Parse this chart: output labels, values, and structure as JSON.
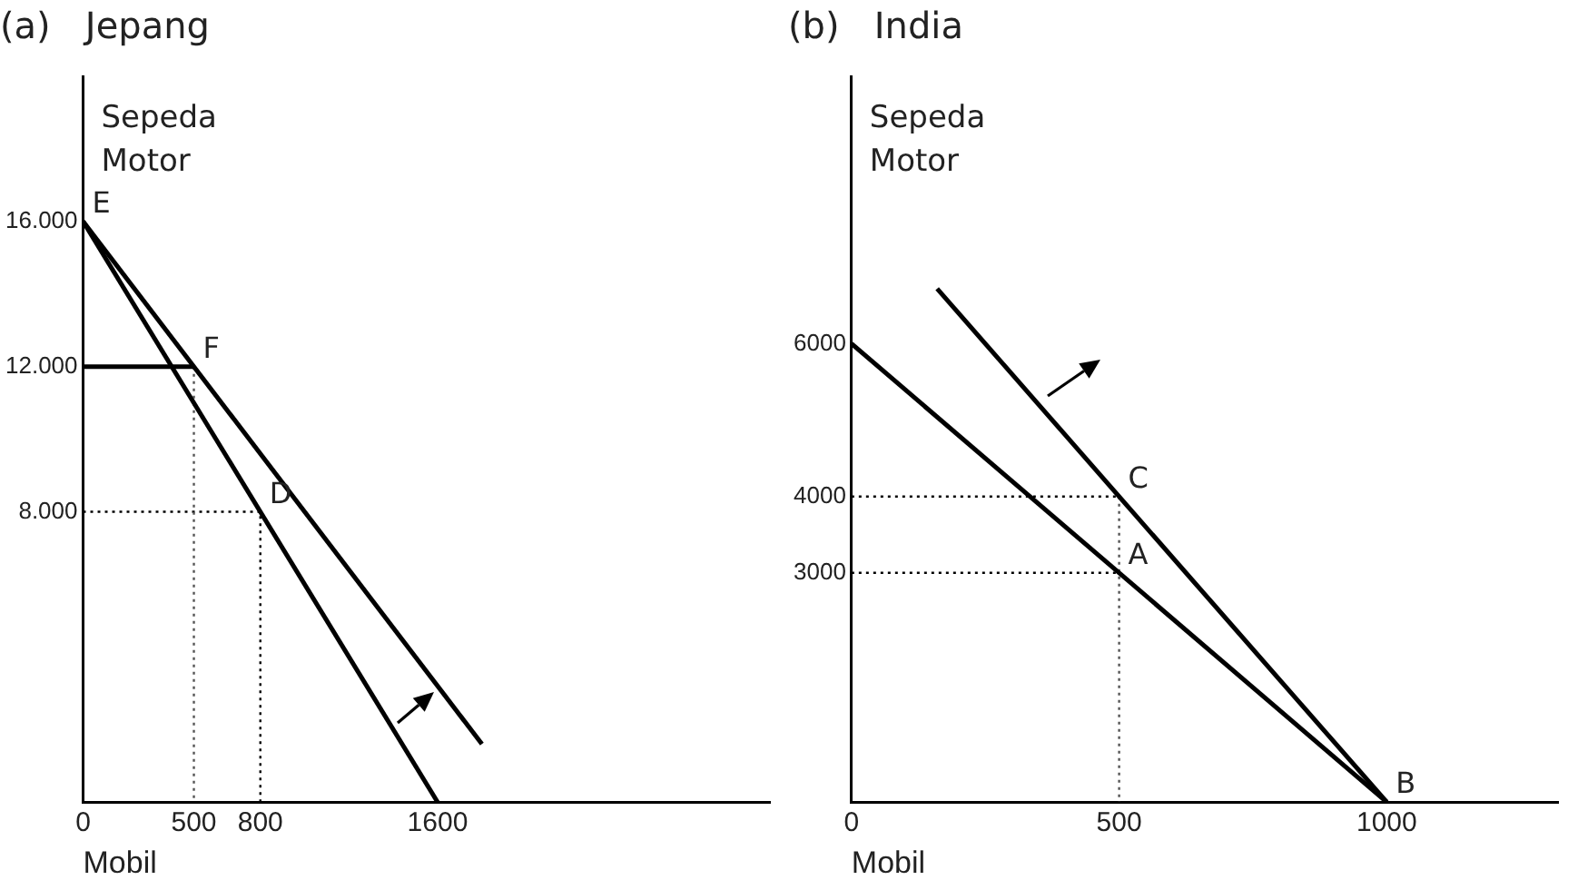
{
  "chart_data": [
    {
      "type": "line",
      "title": "(a)   Jepang",
      "xlabel": "Mobil",
      "ylabel": "Sepeda Motor",
      "xlim": [
        0,
        3100
      ],
      "ylim": [
        0,
        20000
      ],
      "xticks": [
        0,
        500,
        800,
        1600
      ],
      "yticks": [
        {
          "value": 8000,
          "label": "8.000"
        },
        {
          "value": 12000,
          "label": "12.000"
        },
        {
          "value": 16000,
          "label": "16.000"
        }
      ],
      "grid": false,
      "legend": false,
      "marker": "none",
      "series": [
        {
          "color": "#000000",
          "x": [
            0,
            1600
          ],
          "values": [
            16000,
            0
          ],
          "line_style": "solid"
        },
        {
          "color": "#000000",
          "x": [
            0,
            1800
          ],
          "values": [
            16000,
            1600
          ],
          "line_style": "solid"
        },
        {
          "color": "#000000",
          "x": [
            0,
            500
          ],
          "values": [
            12000,
            12000
          ],
          "line_style": "solid"
        },
        {
          "color": "#555555",
          "x": [
            500,
            500
          ],
          "values": [
            12000,
            0
          ],
          "line_style": "dotted"
        },
        {
          "color": "#000000",
          "x": [
            0,
            800,
            800
          ],
          "values": [
            8000,
            8000,
            0
          ],
          "line_style": "dotted"
        }
      ],
      "annotations": [
        {
          "text": "E",
          "x": 0,
          "y": 16000
        },
        {
          "text": "F",
          "x": 500,
          "y": 12000
        },
        {
          "text": "D",
          "x": 800,
          "y": 8000
        }
      ]
    },
    {
      "type": "line",
      "title": "(b)   India",
      "xlabel": "Mobil",
      "ylabel": "Sepeda Motor",
      "xlim": [
        0,
        1320
      ],
      "ylim": [
        0,
        9500
      ],
      "xticks": [
        0,
        500,
        1000
      ],
      "yticks": [
        3000,
        4000,
        6000
      ],
      "grid": false,
      "legend": false,
      "marker": "none",
      "series": [
        {
          "color": "#000000",
          "x": [
            0,
            1000
          ],
          "values": [
            6000,
            0
          ],
          "line_style": "solid"
        },
        {
          "color": "#000000",
          "x": [
            160,
            1000
          ],
          "values": [
            6720,
            0
          ],
          "line_style": "solid"
        },
        {
          "color": "#000000",
          "x": [
            0,
            500
          ],
          "values": [
            4000,
            4000
          ],
          "line_style": "dotted"
        },
        {
          "color": "#000000",
          "x": [
            0,
            500
          ],
          "values": [
            3000,
            3000
          ],
          "line_style": "dotted"
        },
        {
          "color": "#555555",
          "x": [
            500,
            500
          ],
          "values": [
            4000,
            0
          ],
          "line_style": "dotted"
        }
      ],
      "annotations": [
        {
          "text": "C",
          "x": 500,
          "y": 4000
        },
        {
          "text": "A",
          "x": 500,
          "y": 3000
        },
        {
          "text": "B",
          "x": 1000,
          "y": 0
        }
      ]
    }
  ]
}
